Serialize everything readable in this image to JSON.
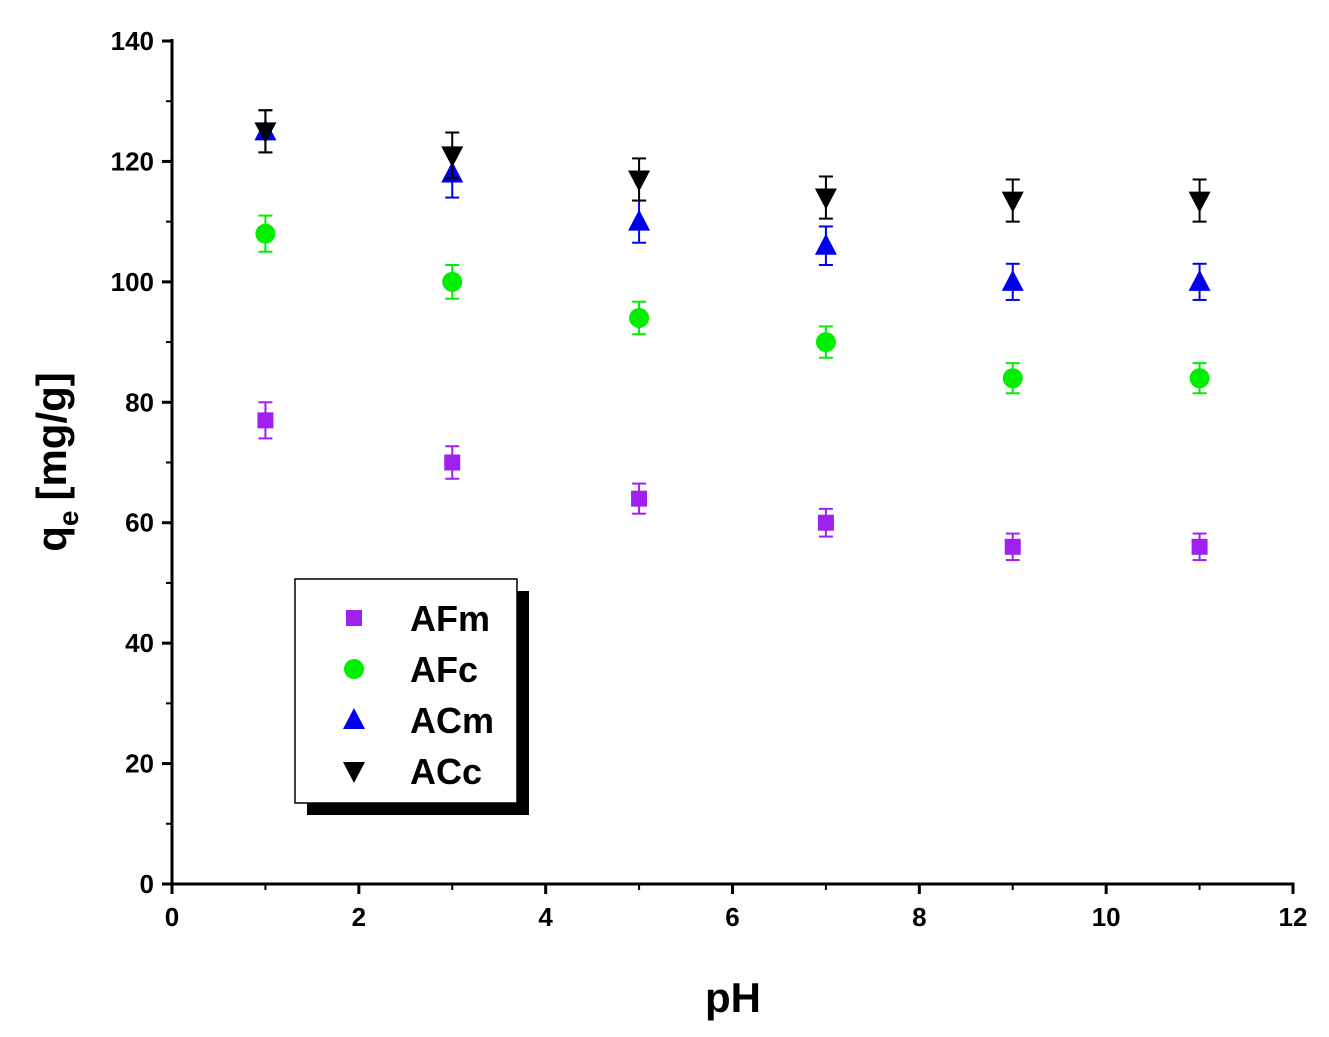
{
  "chart_data": {
    "type": "scatter",
    "xlabel": "pH",
    "ylabel_main": "q",
    "ylabel_subscript": "e",
    "ylabel_unit": "[mg/g]",
    "xlim": [
      0,
      12
    ],
    "ylim": [
      0,
      140
    ],
    "x_ticks": [
      0,
      2,
      4,
      6,
      8,
      10,
      12
    ],
    "x_tick_labels": [
      "0",
      "2",
      "4",
      "6",
      "8",
      "10",
      "12"
    ],
    "y_ticks": [
      0,
      20,
      40,
      60,
      80,
      100,
      120,
      140
    ],
    "y_tick_labels": [
      "0",
      "20",
      "40",
      "60",
      "80",
      "100",
      "120",
      "140"
    ],
    "grid": false,
    "legend_position": "lower-left",
    "series": [
      {
        "name": "AFm",
        "marker": "square",
        "color": "#a020f0",
        "x": [
          1,
          3,
          5,
          7,
          9,
          11
        ],
        "y": [
          77,
          70,
          64,
          60,
          56,
          56
        ],
        "err": [
          3,
          2.7,
          2.5,
          2.3,
          2.2,
          2.2
        ]
      },
      {
        "name": "AFc",
        "marker": "circle",
        "color": "#00ee00",
        "x": [
          1,
          3,
          5,
          7,
          9,
          11
        ],
        "y": [
          108,
          100,
          94,
          90,
          84,
          84
        ],
        "err": [
          3,
          2.8,
          2.7,
          2.6,
          2.5,
          2.5
        ]
      },
      {
        "name": "ACm",
        "marker": "triangle-up",
        "color": "#0000ee",
        "x": [
          1,
          3,
          5,
          7,
          9,
          11
        ],
        "y": [
          125,
          118,
          110,
          106,
          100,
          100
        ],
        "err": [
          3.5,
          4,
          3.5,
          3.2,
          3,
          3
        ]
      },
      {
        "name": "ACc",
        "marker": "triangle-down",
        "color": "#000000",
        "x": [
          1,
          3,
          5,
          7,
          9,
          11
        ],
        "y": [
          125,
          121,
          117,
          114,
          113.5,
          113.5
        ],
        "err": [
          3.5,
          3.8,
          3.5,
          3.5,
          3.5,
          3.5
        ]
      }
    ]
  }
}
